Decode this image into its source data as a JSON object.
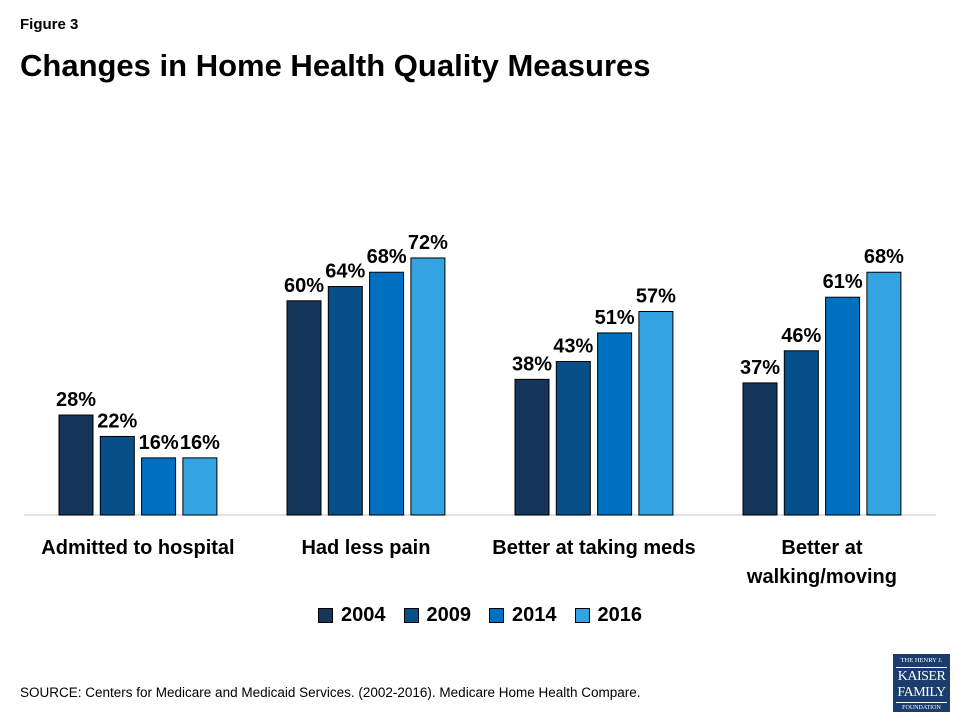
{
  "figure_label": "Figure 3",
  "chart_data": {
    "type": "bar",
    "title": "Changes in Home Health Quality Measures",
    "categories": [
      "Admitted to hospital",
      "Had less pain",
      "Better at taking meds",
      "Better at walking/moving"
    ],
    "category_lines": [
      [
        "Admitted to hospital"
      ],
      [
        "Had less pain"
      ],
      [
        "Better at taking meds"
      ],
      [
        "Better at",
        "walking/moving"
      ]
    ],
    "series": [
      {
        "name": "2004",
        "color": "#15355a",
        "values": [
          28,
          60,
          38,
          37
        ],
        "labels": [
          "28%",
          "60%",
          "38%",
          "37%"
        ]
      },
      {
        "name": "2009",
        "color": "#074f88",
        "values": [
          22,
          64,
          43,
          46
        ],
        "labels": [
          "22%",
          "64%",
          "43%",
          "46%"
        ]
      },
      {
        "name": "2014",
        "color": "#0070c0",
        "values": [
          16,
          68,
          51,
          61
        ],
        "labels": [
          "16%",
          "68%",
          "51%",
          "61%"
        ]
      },
      {
        "name": "2016",
        "color": "#34a3e2",
        "values": [
          16,
          72,
          57,
          68
        ],
        "labels": [
          "16%",
          "72%",
          "57%",
          "68%"
        ]
      }
    ],
    "ylim": [
      0,
      80
    ],
    "grid": false,
    "legend_position": "bottom"
  },
  "source": "SOURCE: Centers for Medicare and Medicaid Services. (2002-2016). Medicare Home Health Compare.",
  "logo": {
    "line1": "THE HENRY J.",
    "line2": "KAISER",
    "line3": "FAMILY",
    "line4": "FOUNDATION"
  }
}
